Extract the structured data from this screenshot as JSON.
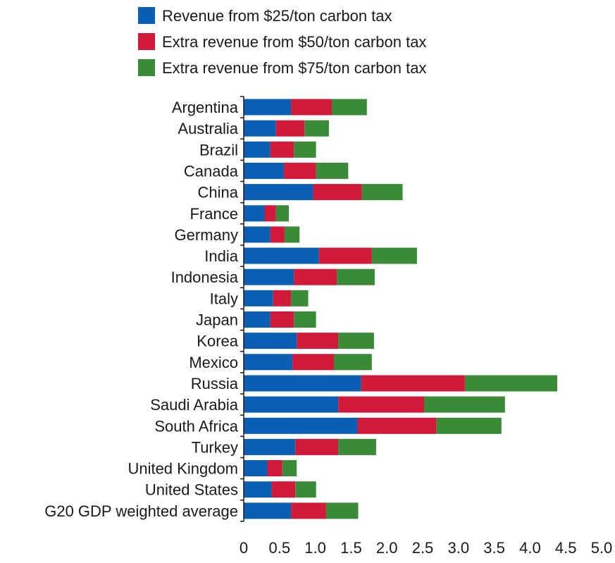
{
  "chart_data": {
    "type": "bar",
    "orientation": "horizontal",
    "stacked": true,
    "categories": [
      "Argentina",
      "Australia",
      "Brazil",
      "Canada",
      "China",
      "France",
      "Germany",
      "India",
      "Indonesia",
      "Italy",
      "Japan",
      "Korea",
      "Mexico",
      "Russia",
      "Saudi Arabia",
      "South Africa",
      "Turkey",
      "United Kingdom",
      "United States",
      "G20 GDP weighted average"
    ],
    "series": [
      {
        "name": "Revenue from $25/ton carbon tax",
        "color": "#0a5fb4",
        "values": [
          0.66,
          0.45,
          0.37,
          0.56,
          0.97,
          0.29,
          0.37,
          1.05,
          0.7,
          0.41,
          0.37,
          0.74,
          0.68,
          1.64,
          1.32,
          1.59,
          0.72,
          0.33,
          0.39,
          0.66
        ]
      },
      {
        "name": "Extra revenue from $50/ton carbon tax",
        "color": "#d11a3a",
        "values": [
          0.57,
          0.4,
          0.33,
          0.45,
          0.68,
          0.16,
          0.2,
          0.74,
          0.6,
          0.25,
          0.33,
          0.58,
          0.58,
          1.45,
          1.2,
          1.1,
          0.6,
          0.21,
          0.33,
          0.49
        ]
      },
      {
        "name": "Extra revenue from $75/ton carbon tax",
        "color": "#3a8a38",
        "values": [
          0.49,
          0.34,
          0.31,
          0.45,
          0.57,
          0.18,
          0.21,
          0.63,
          0.53,
          0.24,
          0.31,
          0.5,
          0.53,
          1.29,
          1.13,
          0.91,
          0.53,
          0.2,
          0.29,
          0.45
        ]
      }
    ],
    "x_ticks": [
      "0",
      "0.5",
      "1.0",
      "1.5",
      "2.0",
      "2.5",
      "3.0",
      "3.5",
      "4.0",
      "4.5",
      "5.0"
    ],
    "xlim": [
      0,
      5
    ],
    "grid": false,
    "legend_position": "top-left"
  }
}
